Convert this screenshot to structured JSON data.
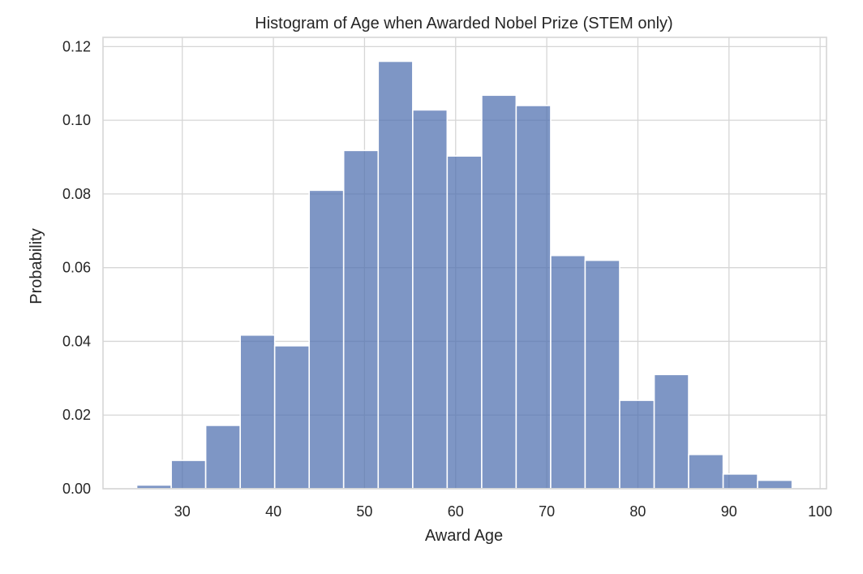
{
  "chart_data": {
    "type": "bar",
    "title": "Histogram of Age when Awarded Nobel Prize (STEM only)",
    "xlabel": "Award Age",
    "ylabel": "Probability",
    "xlim": [
      21.3,
      100.7
    ],
    "ylim": [
      0,
      0.1225
    ],
    "xticks": [
      30,
      40,
      50,
      60,
      70,
      80,
      90,
      100
    ],
    "yticks": [
      0.0,
      0.02,
      0.04,
      0.06,
      0.08,
      0.1,
      0.12
    ],
    "xtick_labels": [
      "30",
      "40",
      "50",
      "60",
      "70",
      "80",
      "90",
      "100"
    ],
    "ytick_labels": [
      "0.00",
      "0.02",
      "0.04",
      "0.06",
      "0.08",
      "0.10",
      "0.12"
    ],
    "grid": true,
    "bin_edges": [
      25.0,
      28.79,
      32.57,
      36.36,
      40.14,
      43.93,
      47.71,
      51.5,
      55.29,
      59.07,
      62.86,
      66.64,
      70.43,
      74.21,
      78.0,
      81.79,
      85.57,
      89.36,
      93.14,
      96.93
    ],
    "values": [
      0.001,
      0.0077,
      0.0172,
      0.0417,
      0.0388,
      0.081,
      0.0918,
      0.116,
      0.1028,
      0.0903,
      0.1068,
      0.104,
      0.0633,
      0.062,
      0.024,
      0.031,
      0.0093,
      0.004,
      0.0023
    ],
    "bar_color": "#4c6eaf",
    "bar_alpha": 0.72,
    "bar_edge_color": "#ffffff",
    "grid_color": "#d6d6d6",
    "background": "#ffffff"
  }
}
